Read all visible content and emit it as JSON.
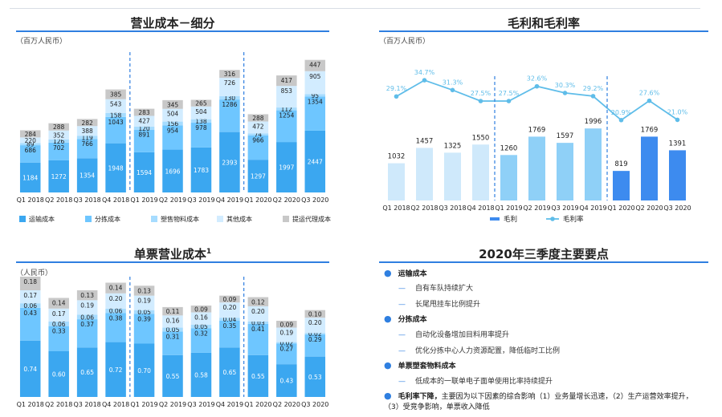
{
  "colors": {
    "transport": "#3ba7f0",
    "sorting": "#6ec6ff",
    "packaging": "#a6dcff",
    "other": "#d2ecff",
    "outsourced": "#c8c8c8",
    "accent": "#2f7fe0",
    "gp_2018": "#cfe9fb",
    "gp_2019": "#8fd0f7",
    "gp_2020": "#3d8bef",
    "margin_line": "#5fbde9"
  },
  "panels": {
    "cost_breakdown": {
      "title": "营业成本－细分",
      "unit": "（百万人民币）"
    },
    "gross_profit": {
      "title": "毛利和毛利率",
      "unit": "（百万人民币）"
    },
    "per_parcel": {
      "title": "单票营业成本",
      "title_sup": "1",
      "unit": "（人民币）"
    },
    "highlights": {
      "title": "2020年三季度主要要点",
      "items": [
        {
          "label": "运输成本",
          "subs": [
            "自有车队持续扩大",
            "长尾甩挂车比例提升"
          ]
        },
        {
          "label": "分拣成本",
          "subs": [
            "自动化设备增加目料用率提升",
            "优化分拣中心人力资源配置，降低临时工比例"
          ]
        },
        {
          "label": "单票塑套物料成本",
          "subs": [
            "低成本的一联单电子面单使用比率持续提升"
          ]
        }
      ],
      "last_item": {
        "label": "毛利率下降，",
        "text": "主要因为以下因素的综合影响（1）业务量增长迅速，（2）生产运营效率提升，（3）受竞争影响，单票收入降低"
      }
    }
  },
  "chart_data": [
    {
      "type": "bar",
      "stacked": true,
      "title": "营业成本－细分",
      "ylabel": "（百万人民币）",
      "categories": [
        "Q1 2018",
        "Q2 2018",
        "Q3 2018",
        "Q4 2018",
        "Q1 2019",
        "Q2 2019",
        "Q3 2019",
        "Q4 2019",
        "Q1 2020",
        "Q2 2020",
        "Q3 2020"
      ],
      "series": [
        {
          "name": "运输成本",
          "values": [
            1184,
            1272,
            1354,
            1948,
            1594,
            1696,
            1783,
            2393,
            1297,
            1997,
            2447
          ]
        },
        {
          "name": "分拣成本",
          "values": [
            686,
            702,
            766,
            1043,
            891,
            954,
            978,
            1286,
            966,
            1254,
            1354
          ]
        },
        {
          "name": "塑售物料成本",
          "values": [
            89,
            126,
            119,
            158,
            120,
            156,
            138,
            130,
            74,
            112,
            95
          ]
        },
        {
          "name": "其他成本",
          "values": [
            220,
            352,
            388,
            543,
            427,
            504,
            504,
            726,
            472,
            853,
            905
          ]
        },
        {
          "name": "提运代理成本",
          "values": [
            284,
            288,
            282,
            385,
            283,
            345,
            265,
            316,
            288,
            417,
            447
          ]
        }
      ],
      "dividers_after": [
        "Q4 2018",
        "Q4 2019"
      ],
      "legend": "bottom"
    },
    {
      "type": "bar+line",
      "title": "毛利和毛利率",
      "ylabel": "（百万人民币）",
      "categories": [
        "Q1 2018",
        "Q2 2018",
        "Q3 2018",
        "Q4 2018",
        "Q1 2019",
        "Q2 2019",
        "Q3 2019",
        "Q4 2019",
        "Q1 2020",
        "Q2 2020",
        "Q3 2020"
      ],
      "series": [
        {
          "name": "毛利",
          "values": [
            1032,
            1457,
            1325,
            1550,
            1260,
            1769,
            1597,
            1996,
            819,
            1769,
            1391
          ]
        },
        {
          "name": "毛利率",
          "values": [
            29.1,
            34.7,
            31.3,
            27.5,
            27.5,
            32.6,
            30.3,
            29.2,
            20.9,
            27.6,
            21.0
          ],
          "labels": [
            "29.1%",
            "34.7%",
            "31.3%",
            "27.5%",
            "27.5%",
            "32.6%",
            "30.3%",
            "29.2%",
            "20.9%",
            "27.6%",
            "21.0%"
          ]
        }
      ],
      "dividers_after": [
        "Q4 2018",
        "Q4 2019"
      ],
      "legend": "bottom"
    },
    {
      "type": "bar",
      "stacked": true,
      "title": "单票营业成本",
      "ylabel": "（人民币）",
      "categories": [
        "Q1 2018",
        "Q2 2018",
        "Q3 2018",
        "Q4 2018",
        "Q1 2019",
        "Q2 2019",
        "Q3 2019",
        "Q4 2019",
        "Q1 2020",
        "Q2 2020",
        "Q3 2020"
      ],
      "series": [
        {
          "values": [
            0.74,
            0.6,
            0.65,
            0.72,
            0.7,
            0.55,
            0.58,
            0.65,
            0.55,
            0.43,
            0.53
          ],
          "labels": [
            "0.74",
            "0.60",
            "0.65",
            "0.72",
            "0.70",
            "0.55",
            "0.58",
            "0.65",
            "0.55",
            "0.43",
            "0.53"
          ]
        },
        {
          "values": [
            0.43,
            0.33,
            0.37,
            0.38,
            0.39,
            0.31,
            0.32,
            0.35,
            0.41,
            0.27,
            0.29
          ],
          "labels": [
            "0.43",
            "0.33",
            "0.37",
            "0.38",
            "0.39",
            "0.31",
            "0.32",
            "0.35",
            "0.41",
            "0.27",
            "0.29"
          ]
        },
        {
          "values": [
            0.06,
            0.06,
            0.06,
            0.06,
            0.05,
            0.05,
            0.05,
            0.04,
            0.03,
            0.02,
            0.02
          ],
          "labels": [
            "0.06",
            "0.06",
            "0.06",
            "0.06",
            "0.05",
            "0.05",
            "0.05",
            "0.04",
            "0.03",
            "0.02",
            "0.02"
          ]
        },
        {
          "values": [
            0.17,
            0.17,
            0.19,
            0.2,
            0.19,
            0.16,
            0.16,
            0.2,
            0.2,
            0.19,
            0.2
          ],
          "labels": [
            "0.17",
            "0.17",
            "0.19",
            "0.20",
            "0.19",
            "0.16",
            "0.16",
            "0.20",
            "0.20",
            "0.19",
            "0.20"
          ]
        },
        {
          "values": [
            0.18,
            0.14,
            0.13,
            0.14,
            0.13,
            0.11,
            0.09,
            0.09,
            0.12,
            0.09,
            0.1
          ],
          "labels": [
            "0.18",
            "0.14",
            "0.13",
            "0.14",
            "0.13",
            "0.11",
            "0.09",
            "0.09",
            "0.12",
            "0.09",
            "0.10"
          ]
        }
      ],
      "dividers_after": [
        "Q4 2018",
        "Q4 2019"
      ]
    }
  ]
}
